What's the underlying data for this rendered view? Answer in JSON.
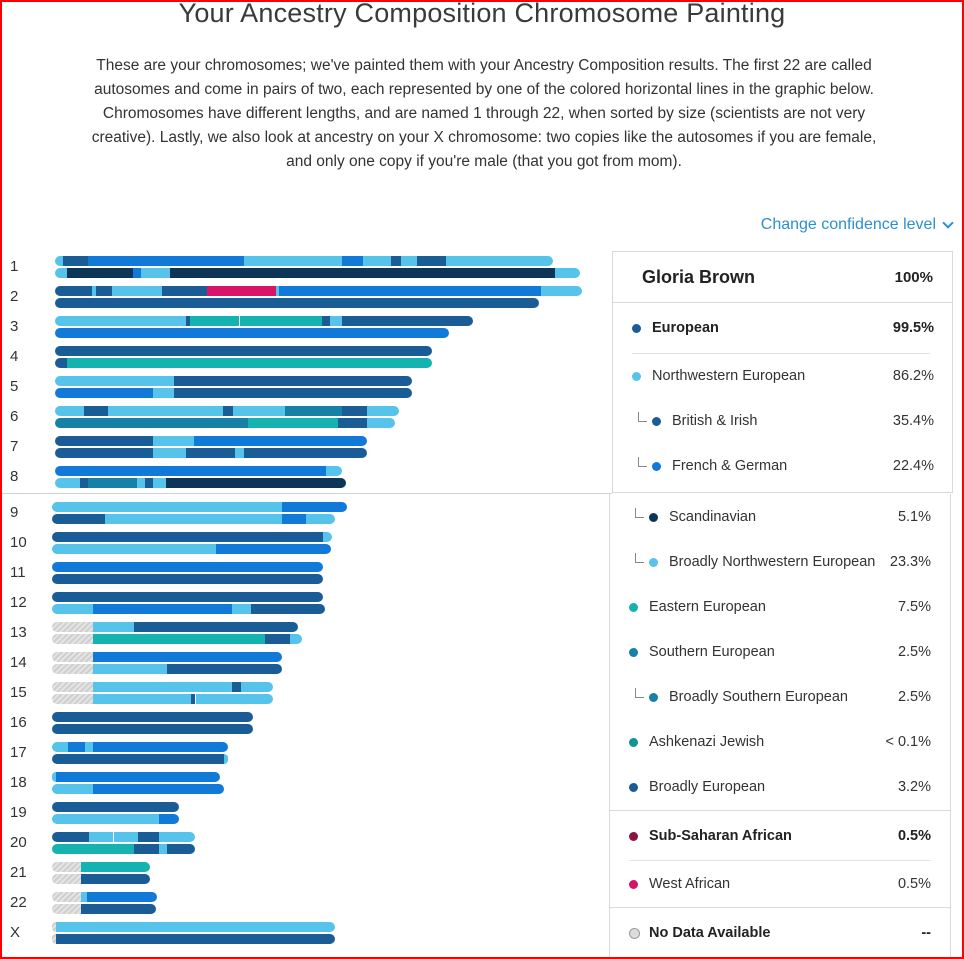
{
  "page": {
    "title": "Your Ancestry Composition Chromosome Painting",
    "intro": "These are your chromosomes; we've painted them with your Ancestry Composition results. The first 22 are called autosomes and come in pairs of two, each represented by one of the colored horizontal lines in the graphic below. Chromosomes have different lengths, and are named 1 through 22, when sorted by size (scientists are not very creative). Lastly, we also look at ancestry on your X chromosome: two copies like the autosomes if you are female, and only one copy if you're male (that you got from mom).",
    "confidence_label": "Change confidence level"
  },
  "colors": {
    "nw": "#55c3ea",
    "brit": "#1a5d96",
    "french": "#1179d8",
    "scand": "#0d3558",
    "eastern": "#14b3b0",
    "southern": "#1680a6",
    "ashk": "#109490",
    "african": "#d61567",
    "nodata": "#dcdcdc"
  },
  "person": {
    "name": "Gloria Brown",
    "percent": "100%"
  },
  "populations": [
    {
      "name": "European",
      "percent": "99.5%",
      "color": "#1a5d96",
      "bold": true
    },
    {
      "name": "Northwestern European",
      "percent": "86.2%",
      "color": "#55c3ea"
    },
    {
      "name": "British & Irish",
      "percent": "35.4%",
      "color": "#1a5d96",
      "indent": true
    },
    {
      "name": "French & German",
      "percent": "22.4%",
      "color": "#1179d8",
      "indent": true
    },
    {
      "name": "Scandinavian",
      "percent": "5.1%",
      "color": "#0d3558",
      "indent": true
    },
    {
      "name": "Broadly Northwestern European",
      "percent": "23.3%",
      "color": "#55c3ea",
      "indent": true
    },
    {
      "name": "Eastern European",
      "percent": "7.5%",
      "color": "#14b3b0"
    },
    {
      "name": "Southern European",
      "percent": "2.5%",
      "color": "#1680a6"
    },
    {
      "name": "Broadly Southern European",
      "percent": "2.5%",
      "color": "#1680a6",
      "indent": true
    },
    {
      "name": "Ashkenazi Jewish",
      "percent": "< 0.1%",
      "color": "#109490"
    },
    {
      "name": "Broadly European",
      "percent": "3.2%",
      "color": "#1a5d96"
    },
    {
      "name": "Sub-Saharan African",
      "percent": "0.5%",
      "color": "#8a1442",
      "bold": true
    },
    {
      "name": "West African",
      "percent": "0.5%",
      "color": "#d61567"
    },
    {
      "name": "No Data Available",
      "percent": "--",
      "color": "#dcdcdc",
      "bold": true,
      "outline": true
    }
  ],
  "chromosomes": [
    {
      "label": "1",
      "strands": [
        [
          [
            "nw",
            0.1
          ],
          [
            "brit",
            0.3
          ],
          [
            "french",
            1.9
          ],
          [
            "nw",
            0.3
          ],
          [
            "nw",
            0.9
          ],
          [
            "french",
            0.25
          ],
          [
            "nw",
            0.35
          ],
          [
            "brit",
            0.12
          ],
          [
            "nw",
            0.2
          ],
          [
            "brit",
            0.35
          ],
          [
            "nw",
            1.3
          ]
        ],
        [
          [
            "nw",
            0.15
          ],
          [
            "scand",
            0.8
          ],
          [
            "french",
            0.1
          ],
          [
            "nw",
            0.35
          ],
          [
            "scand",
            1.9
          ],
          [
            "scand",
            2.8
          ],
          [
            "nw",
            0.3
          ]
        ]
      ]
    },
    {
      "label": "2",
      "strands": [
        [
          [
            "brit",
            0.45
          ],
          [
            "nw",
            0.05
          ],
          [
            "brit",
            0.2
          ],
          [
            "nw",
            0.6
          ],
          [
            "brit",
            0.55
          ],
          [
            "african",
            0.55
          ],
          [
            "african",
            0.3
          ],
          [
            "nw",
            0.03
          ],
          [
            "french",
            3.2
          ],
          [
            "nw",
            0.5
          ]
        ],
        [
          [
            "brit",
            2.1
          ],
          [
            "brit",
            3.8
          ]
        ]
      ]
    },
    {
      "label": "3",
      "strands": [
        [
          [
            "nw",
            1.6
          ],
          [
            "brit",
            0.05
          ],
          [
            "eastern",
            0.6
          ],
          [
            "eastern",
            1.0
          ],
          [
            "brit",
            0.1
          ],
          [
            "nw",
            0.15
          ],
          [
            "brit",
            1.6
          ]
        ],
        [
          [
            "french",
            2.2
          ],
          [
            "french",
            2.6
          ]
        ]
      ]
    },
    {
      "label": "4",
      "strands": [
        [
          [
            "brit",
            1.2
          ],
          [
            "brit",
            3.4
          ]
        ],
        [
          [
            "brit",
            0.15
          ],
          [
            "eastern",
            1.05
          ],
          [
            "eastern",
            3.4
          ]
        ]
      ]
    },
    {
      "label": "5",
      "strands": [
        [
          [
            "nw",
            1.2
          ],
          [
            "nw",
            0.25
          ],
          [
            "brit",
            2.9
          ]
        ],
        [
          [
            "french",
            1.2
          ],
          [
            "nw",
            0.25
          ],
          [
            "brit",
            2.9
          ]
        ]
      ]
    },
    {
      "label": "6",
      "strands": [
        [
          [
            "nw",
            0.35
          ],
          [
            "brit",
            0.3
          ],
          [
            "nw",
            0.85
          ],
          [
            "nw",
            0.55
          ],
          [
            "brit",
            0.12
          ],
          [
            "nw",
            0.6
          ],
          [
            "nw",
            0.03
          ],
          [
            "southern",
            0.7
          ],
          [
            "brit",
            0.3
          ],
          [
            "nw",
            0.4
          ]
        ],
        [
          [
            "southern",
            1.45
          ],
          [
            "southern",
            0.7
          ],
          [
            "southern",
            0.2
          ],
          [
            "eastern",
            1.1
          ],
          [
            "brit",
            0.35
          ],
          [
            "nw",
            0.05
          ],
          [
            "nw",
            0.3
          ]
        ]
      ]
    },
    {
      "label": "7",
      "strands": [
        [
          [
            "brit",
            1.2
          ],
          [
            "nw",
            0.2
          ],
          [
            "nw",
            0.3
          ],
          [
            "french",
            2.1
          ]
        ],
        [
          [
            "brit",
            1.2
          ],
          [
            "nw",
            0.2
          ],
          [
            "nw",
            0.2
          ],
          [
            "brit",
            0.6
          ],
          [
            "nw",
            0.1
          ],
          [
            "brit",
            1.5
          ]
        ]
      ]
    },
    {
      "label": "8",
      "strands": [
        [
          [
            "french",
            1.1
          ],
          [
            "french",
            2.2
          ],
          [
            "nw",
            0.2
          ]
        ],
        [
          [
            "nw",
            0.3
          ],
          [
            "brit",
            0.1
          ],
          [
            "southern",
            0.6
          ],
          [
            "nw",
            0.1
          ],
          [
            "brit",
            0.1
          ],
          [
            "nw",
            0.15
          ],
          [
            "scand",
            2.2
          ]
        ]
      ]
    },
    {
      "label": "9",
      "strands": [
        [
          [
            "nw",
            1.2
          ],
          [
            "nw",
            1.6
          ],
          [
            "french",
            0.8
          ]
        ],
        [
          [
            "brit",
            0.65
          ],
          [
            "nw",
            0.55
          ],
          [
            "nw",
            1.6
          ],
          [
            "french",
            0.3
          ],
          [
            "nw",
            0.35
          ]
        ]
      ]
    },
    {
      "label": "10",
      "strands": [
        [
          [
            "brit",
            1.0
          ],
          [
            "brit",
            2.3
          ],
          [
            "nw",
            0.12
          ]
        ],
        [
          [
            "nw",
            1.0
          ],
          [
            "nw",
            1.0
          ],
          [
            "french",
            1.4
          ]
        ]
      ]
    },
    {
      "label": "11",
      "strands": [
        [
          [
            "french",
            1.3
          ],
          [
            "french",
            2.0
          ]
        ],
        [
          [
            "brit",
            1.3
          ],
          [
            "brit",
            2.0
          ]
        ]
      ]
    },
    {
      "label": "12",
      "strands": [
        [
          [
            "brit",
            0.9
          ],
          [
            "brit",
            2.4
          ]
        ],
        [
          [
            "nw",
            0.5
          ],
          [
            "french",
            0.4
          ],
          [
            "french",
            1.3
          ],
          [
            "nw",
            0.08
          ],
          [
            "nw",
            0.15
          ],
          [
            "brit",
            0.9
          ]
        ]
      ]
    },
    {
      "label": "13",
      "strands": [
        [
          [
            "nodata",
            0.5
          ],
          [
            "nw",
            0.5
          ],
          [
            "brit",
            2.0
          ]
        ],
        [
          [
            "nodata",
            0.5
          ],
          [
            "eastern",
            2.1
          ],
          [
            "brit",
            0.3
          ],
          [
            "nw",
            0.15
          ]
        ]
      ]
    },
    {
      "label": "14",
      "strands": [
        [
          [
            "nodata",
            0.5
          ],
          [
            "french",
            2.3
          ]
        ],
        [
          [
            "nodata",
            0.5
          ],
          [
            "nw",
            0.9
          ],
          [
            "brit",
            1.4
          ]
        ]
      ]
    },
    {
      "label": "15",
      "strands": [
        [
          [
            "nodata",
            0.5
          ],
          [
            "nw",
            1.7
          ],
          [
            "brit",
            0.1
          ],
          [
            "nw",
            0.4
          ]
        ],
        [
          [
            "nodata",
            0.5
          ],
          [
            "nw",
            1.2
          ],
          [
            "brit",
            0.05
          ],
          [
            "nw",
            0.95
          ]
        ]
      ]
    },
    {
      "label": "16",
      "strands": [
        [
          [
            "brit",
            1.0
          ],
          [
            "brit",
            1.45
          ]
        ],
        [
          [
            "brit",
            1.0
          ],
          [
            "brit",
            1.45
          ]
        ]
      ]
    },
    {
      "label": "17",
      "strands": [
        [
          [
            "nw",
            0.2
          ],
          [
            "french",
            0.2
          ],
          [
            "nw",
            0.1
          ],
          [
            "french",
            0.1
          ],
          [
            "french",
            1.55
          ]
        ],
        [
          [
            "brit",
            0.6
          ],
          [
            "brit",
            1.5
          ],
          [
            "nw",
            0.05
          ]
        ]
      ]
    },
    {
      "label": "18",
      "strands": [
        [
          [
            "nw",
            0.05
          ],
          [
            "french",
            0.4
          ],
          [
            "french",
            1.6
          ]
        ],
        [
          [
            "nw",
            0.45
          ],
          [
            "nw",
            0.05
          ],
          [
            "french",
            1.6
          ]
        ]
      ]
    },
    {
      "label": "19",
      "strands": [
        [
          [
            "brit",
            0.7
          ],
          [
            "brit",
            0.85
          ]
        ],
        [
          [
            "nw",
            1.3
          ],
          [
            "french",
            0.25
          ]
        ]
      ]
    },
    {
      "label": "20",
      "strands": [
        [
          [
            "brit",
            0.45
          ],
          [
            "nw",
            0.3
          ],
          [
            "nw",
            0.3
          ],
          [
            "brit",
            0.25
          ],
          [
            "nw",
            0.45
          ]
        ],
        [
          [
            "eastern",
            0.75
          ],
          [
            "eastern",
            0.25
          ],
          [
            "brit",
            0.3
          ],
          [
            "nw",
            0.1
          ],
          [
            "brit",
            0.35
          ]
        ]
      ]
    },
    {
      "label": "21",
      "strands": [
        [
          [
            "nodata",
            0.35
          ],
          [
            "eastern",
            0.85
          ]
        ],
        [
          [
            "nodata",
            0.35
          ],
          [
            "brit",
            0.85
          ]
        ]
      ]
    },
    {
      "label": "22",
      "strands": [
        [
          [
            "nodata",
            0.35
          ],
          [
            "nw",
            0.08
          ],
          [
            "french",
            0.85
          ]
        ],
        [
          [
            "nodata",
            0.35
          ],
          [
            "brit",
            0.92
          ]
        ]
      ]
    },
    {
      "label": "X",
      "strands": [
        [
          [
            "nodata",
            0.05
          ],
          [
            "nw",
            1.3
          ],
          [
            "nw",
            2.1
          ]
        ],
        [
          [
            "nodata",
            0.05
          ],
          [
            "brit",
            1.3
          ],
          [
            "brit",
            2.1
          ]
        ]
      ]
    }
  ]
}
